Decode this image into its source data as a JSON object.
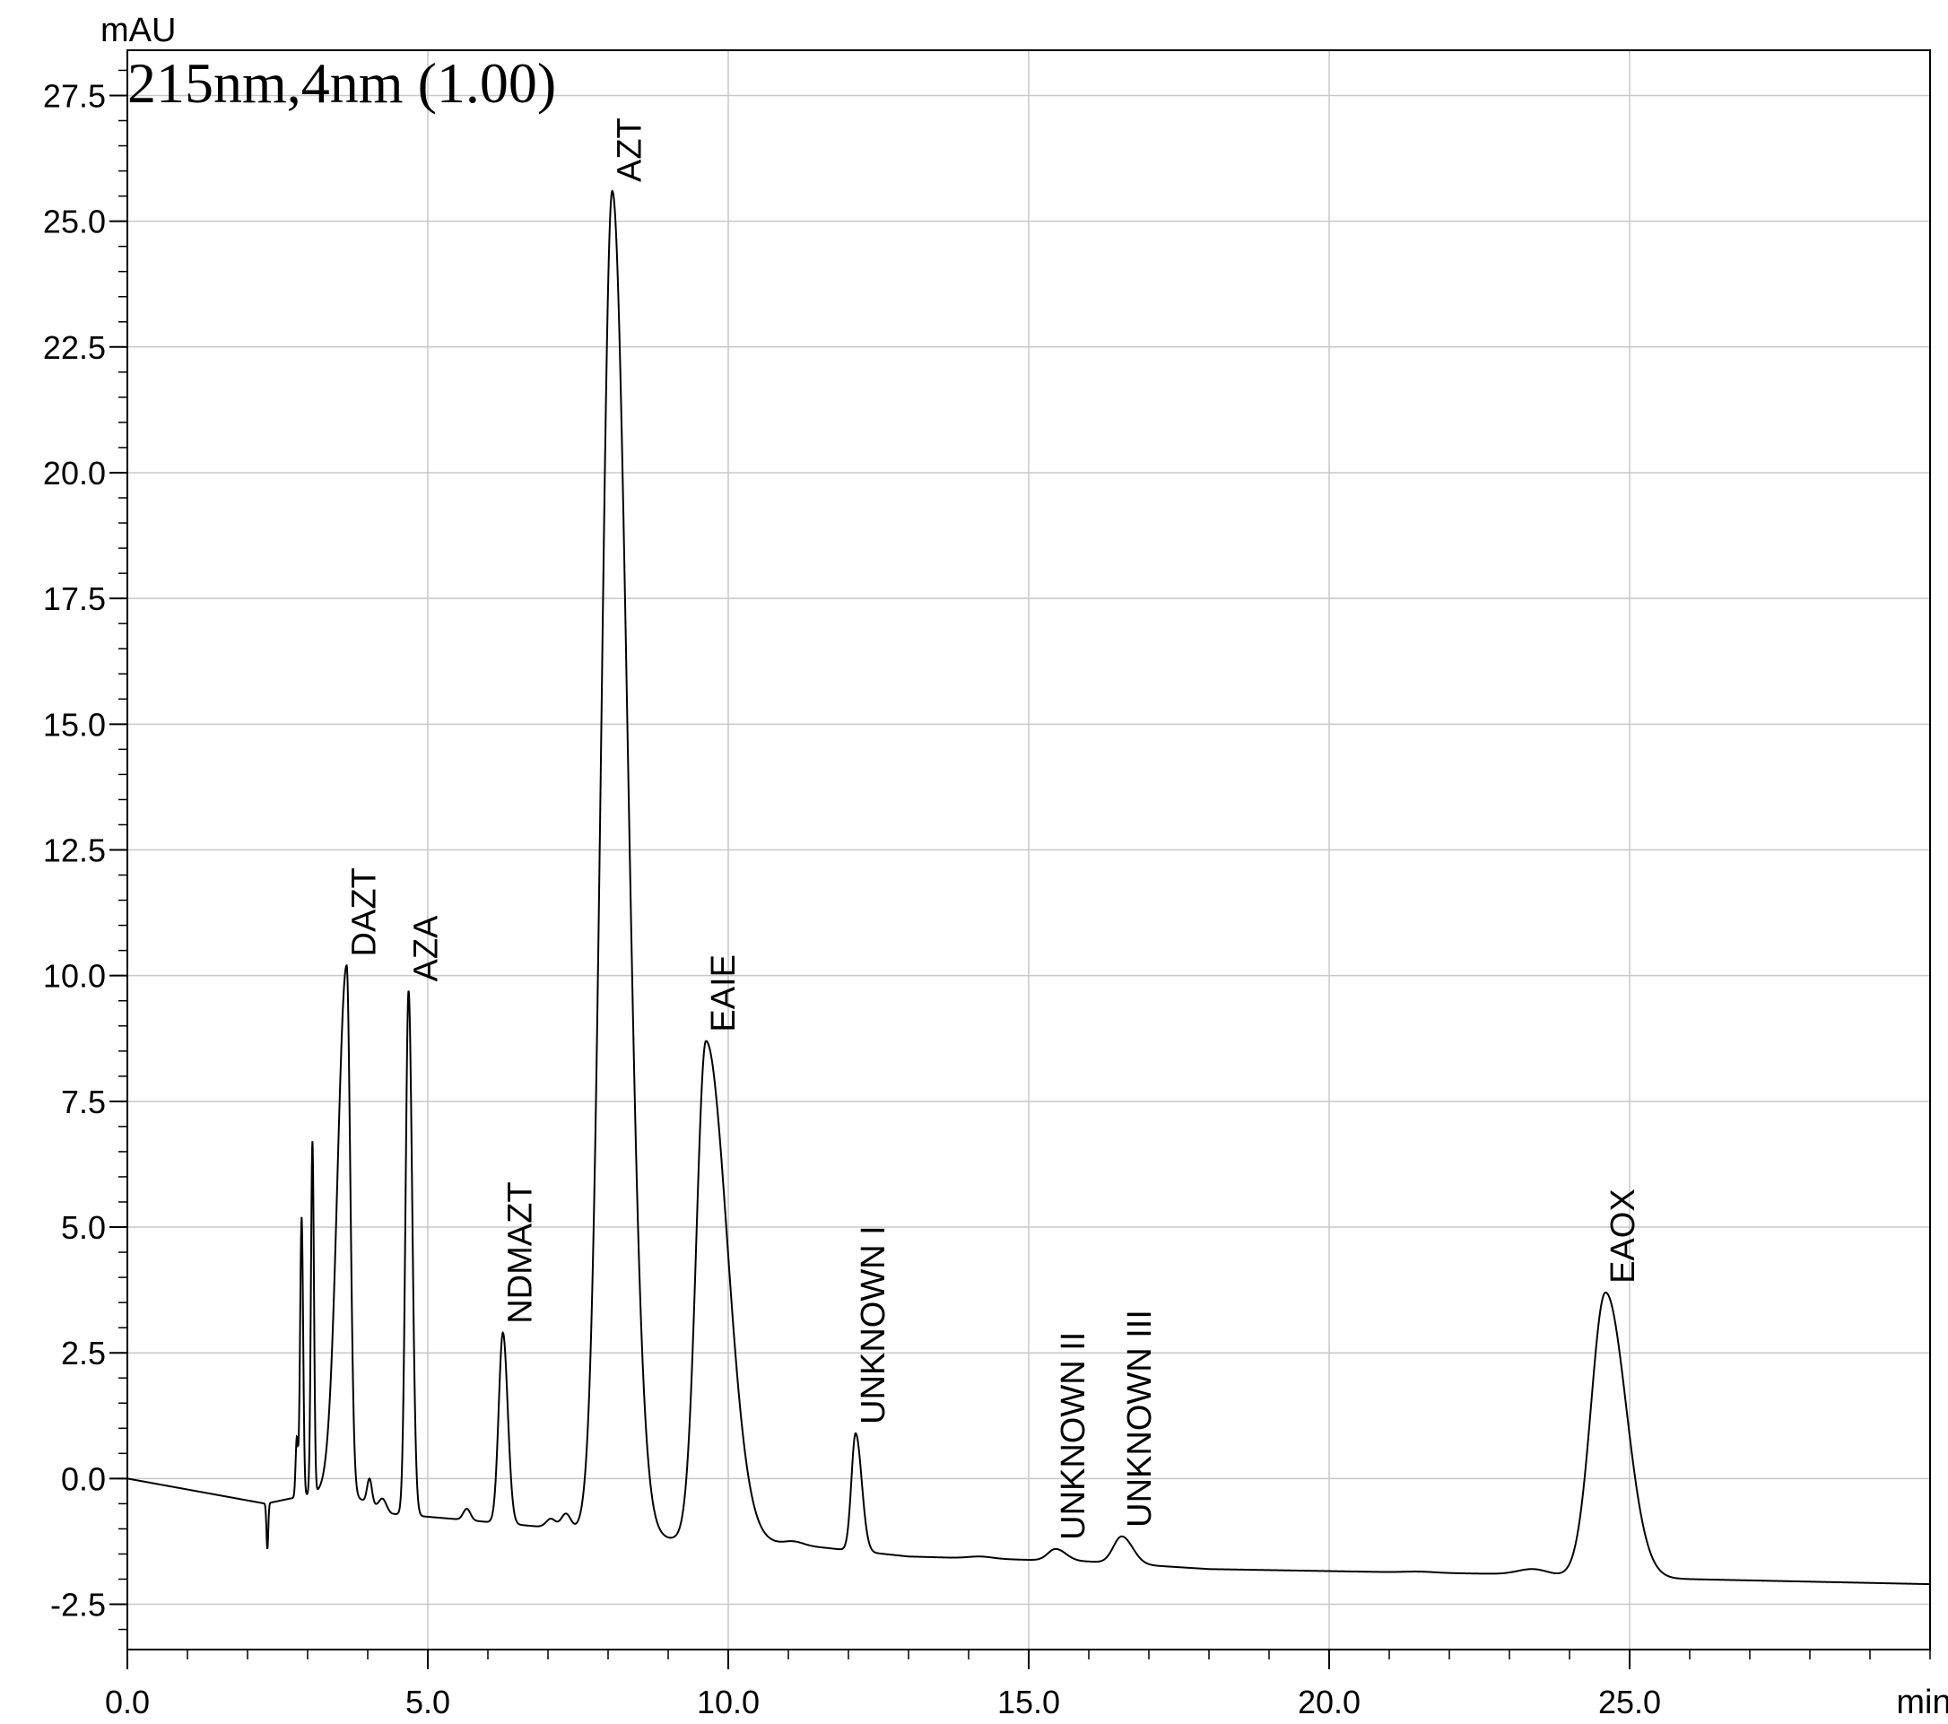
{
  "chart_data": {
    "type": "line",
    "title": "215nm,4nm (1.00)",
    "ylabel": "mAU",
    "xlabel": "min",
    "xlim": [
      0.0,
      30.0
    ],
    "ylim": [
      -3.4,
      28.4
    ],
    "x_ticks": [
      {
        "value": 0.0,
        "label": "0.0"
      },
      {
        "value": 5.0,
        "label": "5.0"
      },
      {
        "value": 10.0,
        "label": "10.0"
      },
      {
        "value": 15.0,
        "label": "15.0"
      },
      {
        "value": 20.0,
        "label": "20.0"
      },
      {
        "value": 25.0,
        "label": "25.0"
      }
    ],
    "y_ticks": [
      {
        "value": -2.5,
        "label": "-2.5"
      },
      {
        "value": 0.0,
        "label": "0.0"
      },
      {
        "value": 2.5,
        "label": "2.5"
      },
      {
        "value": 5.0,
        "label": "5.0"
      },
      {
        "value": 7.5,
        "label": "7.5"
      },
      {
        "value": 10.0,
        "label": "10.0"
      },
      {
        "value": 12.5,
        "label": "12.5"
      },
      {
        "value": 15.0,
        "label": "15.0"
      },
      {
        "value": 17.5,
        "label": "17.5"
      },
      {
        "value": 20.0,
        "label": "20.0"
      },
      {
        "value": 22.5,
        "label": "22.5"
      },
      {
        "value": 25.0,
        "label": "25.0"
      },
      {
        "value": 27.5,
        "label": "27.5"
      }
    ],
    "grid": true,
    "peaks": [
      {
        "label": "DAZT",
        "x": 3.65,
        "y": 10.2
      },
      {
        "label": "AZA",
        "x": 4.68,
        "y": 9.7
      },
      {
        "label": "NDMAZT",
        "x": 6.25,
        "y": 2.9
      },
      {
        "label": "AZT",
        "x": 8.07,
        "y": 25.6
      },
      {
        "label": "EAIE",
        "x": 9.63,
        "y": 8.7
      },
      {
        "label": "UNKNOWN I",
        "x": 12.12,
        "y": 0.9
      },
      {
        "label": "UNKNOWN II",
        "x": 15.45,
        "y": -1.4
      },
      {
        "label": "UNKNOWN III",
        "x": 16.55,
        "y": -1.15
      },
      {
        "label": "EAOX",
        "x": 24.6,
        "y": 3.7
      }
    ],
    "minor_peaks": [
      {
        "x": 2.33,
        "y": -1.4,
        "w": 0.015
      },
      {
        "x": 2.82,
        "y": 0.8,
        "w": 0.02
      },
      {
        "x": 2.9,
        "y": 5.2,
        "w": 0.025
      },
      {
        "x": 3.08,
        "y": 6.7,
        "w": 0.025
      },
      {
        "x": 4.03,
        "y": 0.0,
        "w": 0.04
      },
      {
        "x": 4.25,
        "y": -0.4,
        "w": 0.06
      },
      {
        "x": 5.65,
        "y": -0.6,
        "w": 0.06
      },
      {
        "x": 7.05,
        "y": -0.8,
        "w": 0.08
      },
      {
        "x": 7.3,
        "y": -0.7,
        "w": 0.08
      },
      {
        "x": 11.1,
        "y": -1.25,
        "w": 0.15
      },
      {
        "x": 14.2,
        "y": -1.55,
        "w": 0.2
      },
      {
        "x": 21.5,
        "y": -1.85,
        "w": 0.25
      },
      {
        "x": 23.4,
        "y": -1.8,
        "w": 0.25
      }
    ]
  }
}
